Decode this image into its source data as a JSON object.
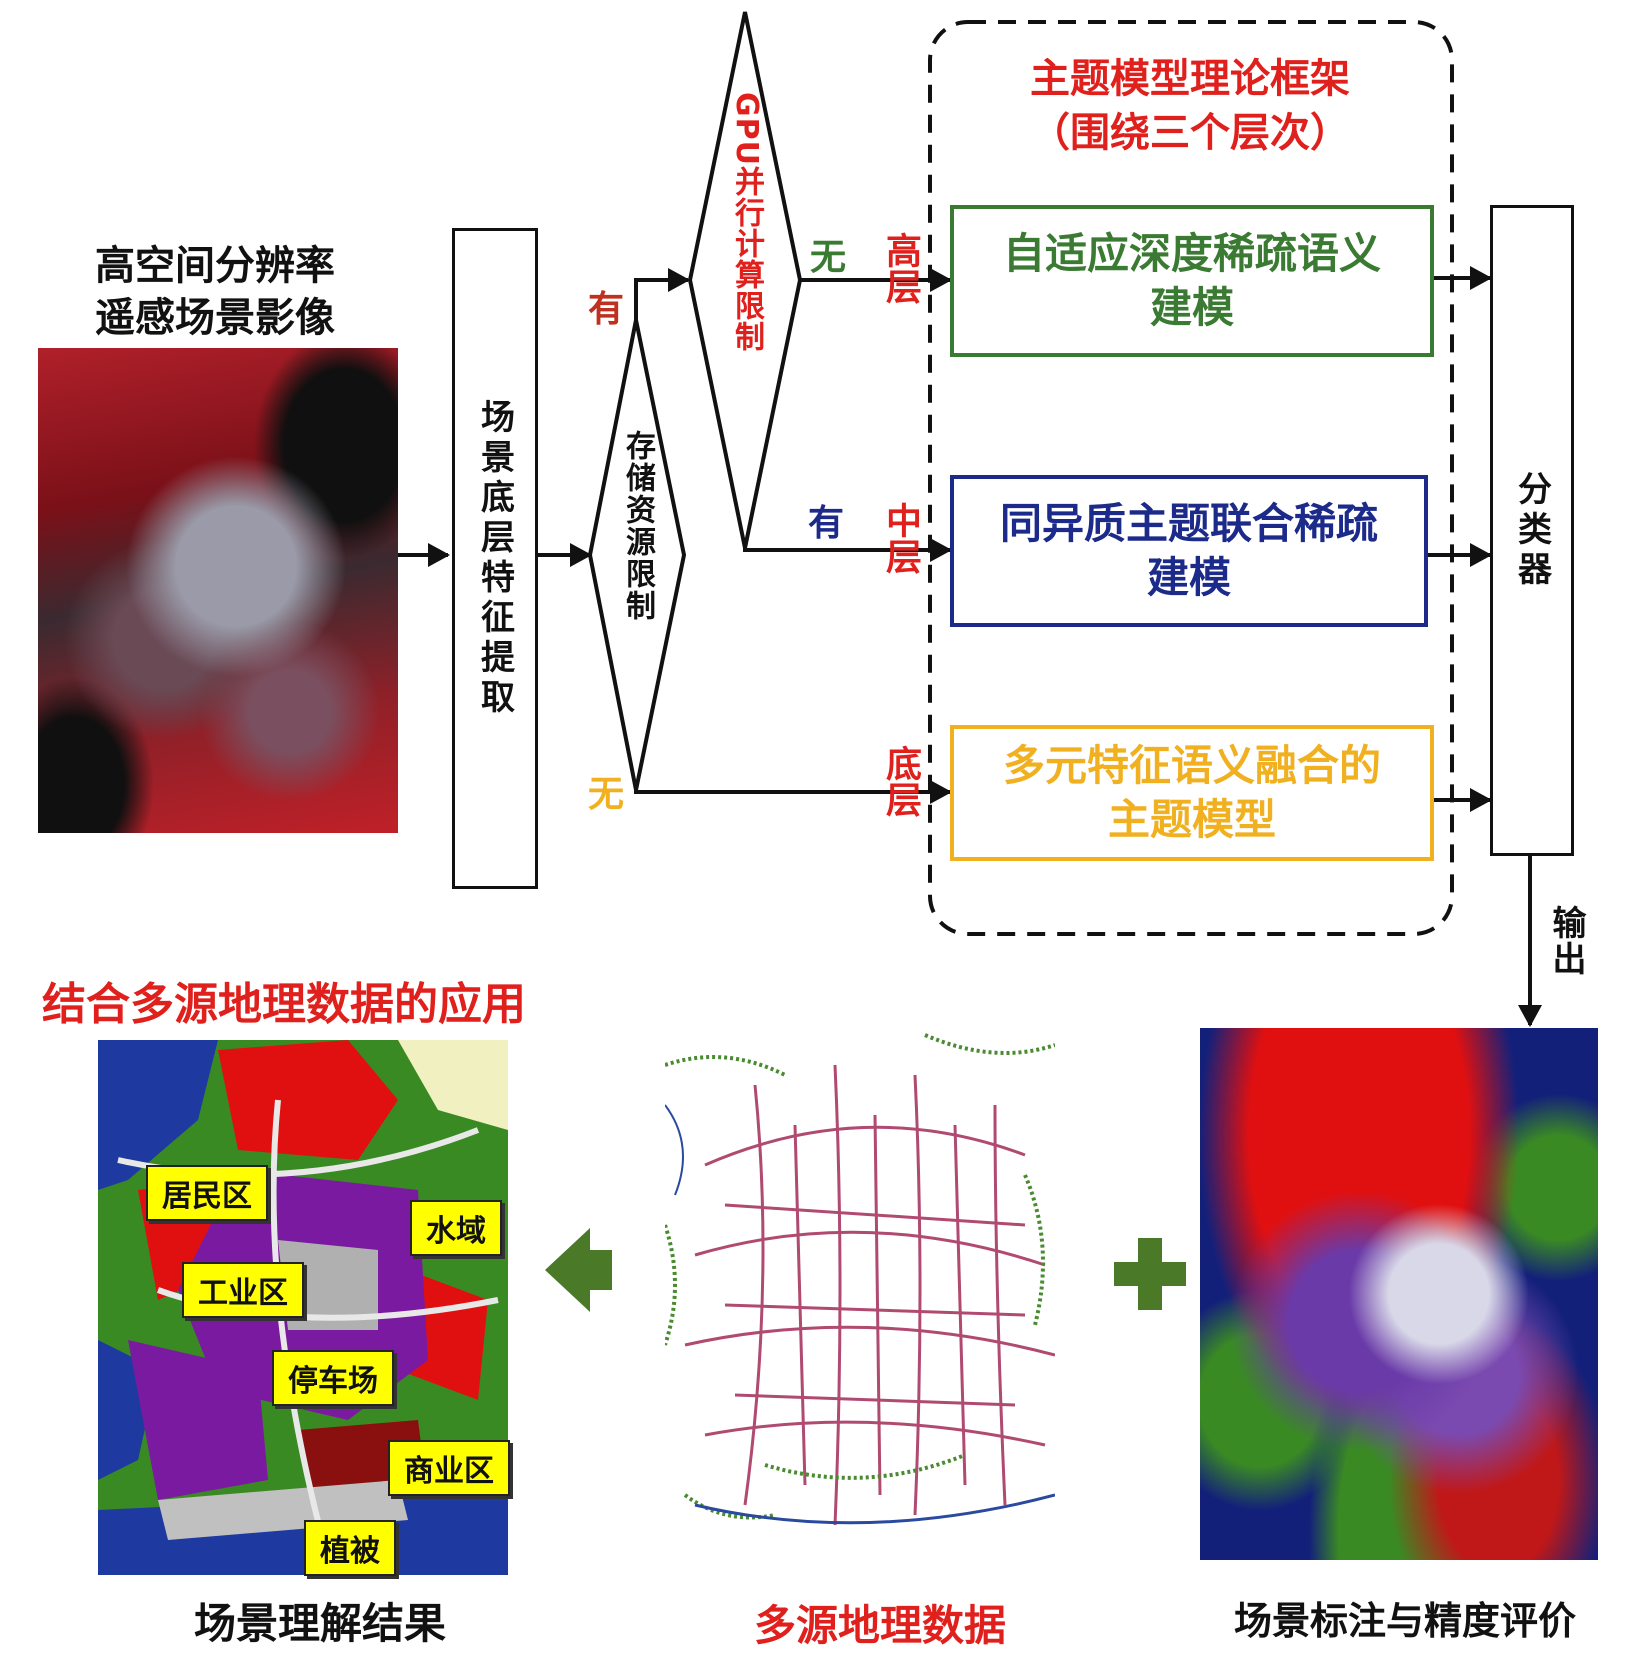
{
  "colors": {
    "red": "#e0201c",
    "green": "#3a7a32",
    "blue": "#1c2a8a",
    "orange": "#f0b020",
    "dark_green_arrow": "#4a7a28"
  },
  "input": {
    "title_line1": "高空间分辨率",
    "title_line2": "遥感场景影像"
  },
  "feature_box": {
    "label": "场景底层特征提取"
  },
  "storage_diamond": {
    "label": "存储资源限制"
  },
  "gpu_diamond": {
    "label": "GPU并行计算限制"
  },
  "branch_labels": {
    "storage_yes": "有",
    "storage_no": "无",
    "gpu_no": "无",
    "gpu_yes": "有"
  },
  "framework": {
    "title_line1": "主题模型理论框架",
    "title_line2": "（围绕三个层次）",
    "levels": [
      {
        "level": "高层",
        "model_line1": "自适应深度稀疏语义",
        "model_line2": "建模"
      },
      {
        "level": "中层",
        "model_line1": "同异质主题联合稀疏",
        "model_line2": "建模"
      },
      {
        "level": "底层",
        "model_line1": "多元特征语义融合的",
        "model_line2": "主题模型"
      }
    ]
  },
  "classifier": {
    "label": "分类器"
  },
  "output_label": "输出",
  "application_title": "结合多源地理数据的应用",
  "result_map": {
    "tags": [
      "居民区",
      "水域",
      "工业区",
      "停车场",
      "商业区",
      "植被"
    ]
  },
  "captions": {
    "result": "场景理解结果",
    "geo_data": "多源地理数据",
    "annotation": "场景标注与精度评价"
  }
}
